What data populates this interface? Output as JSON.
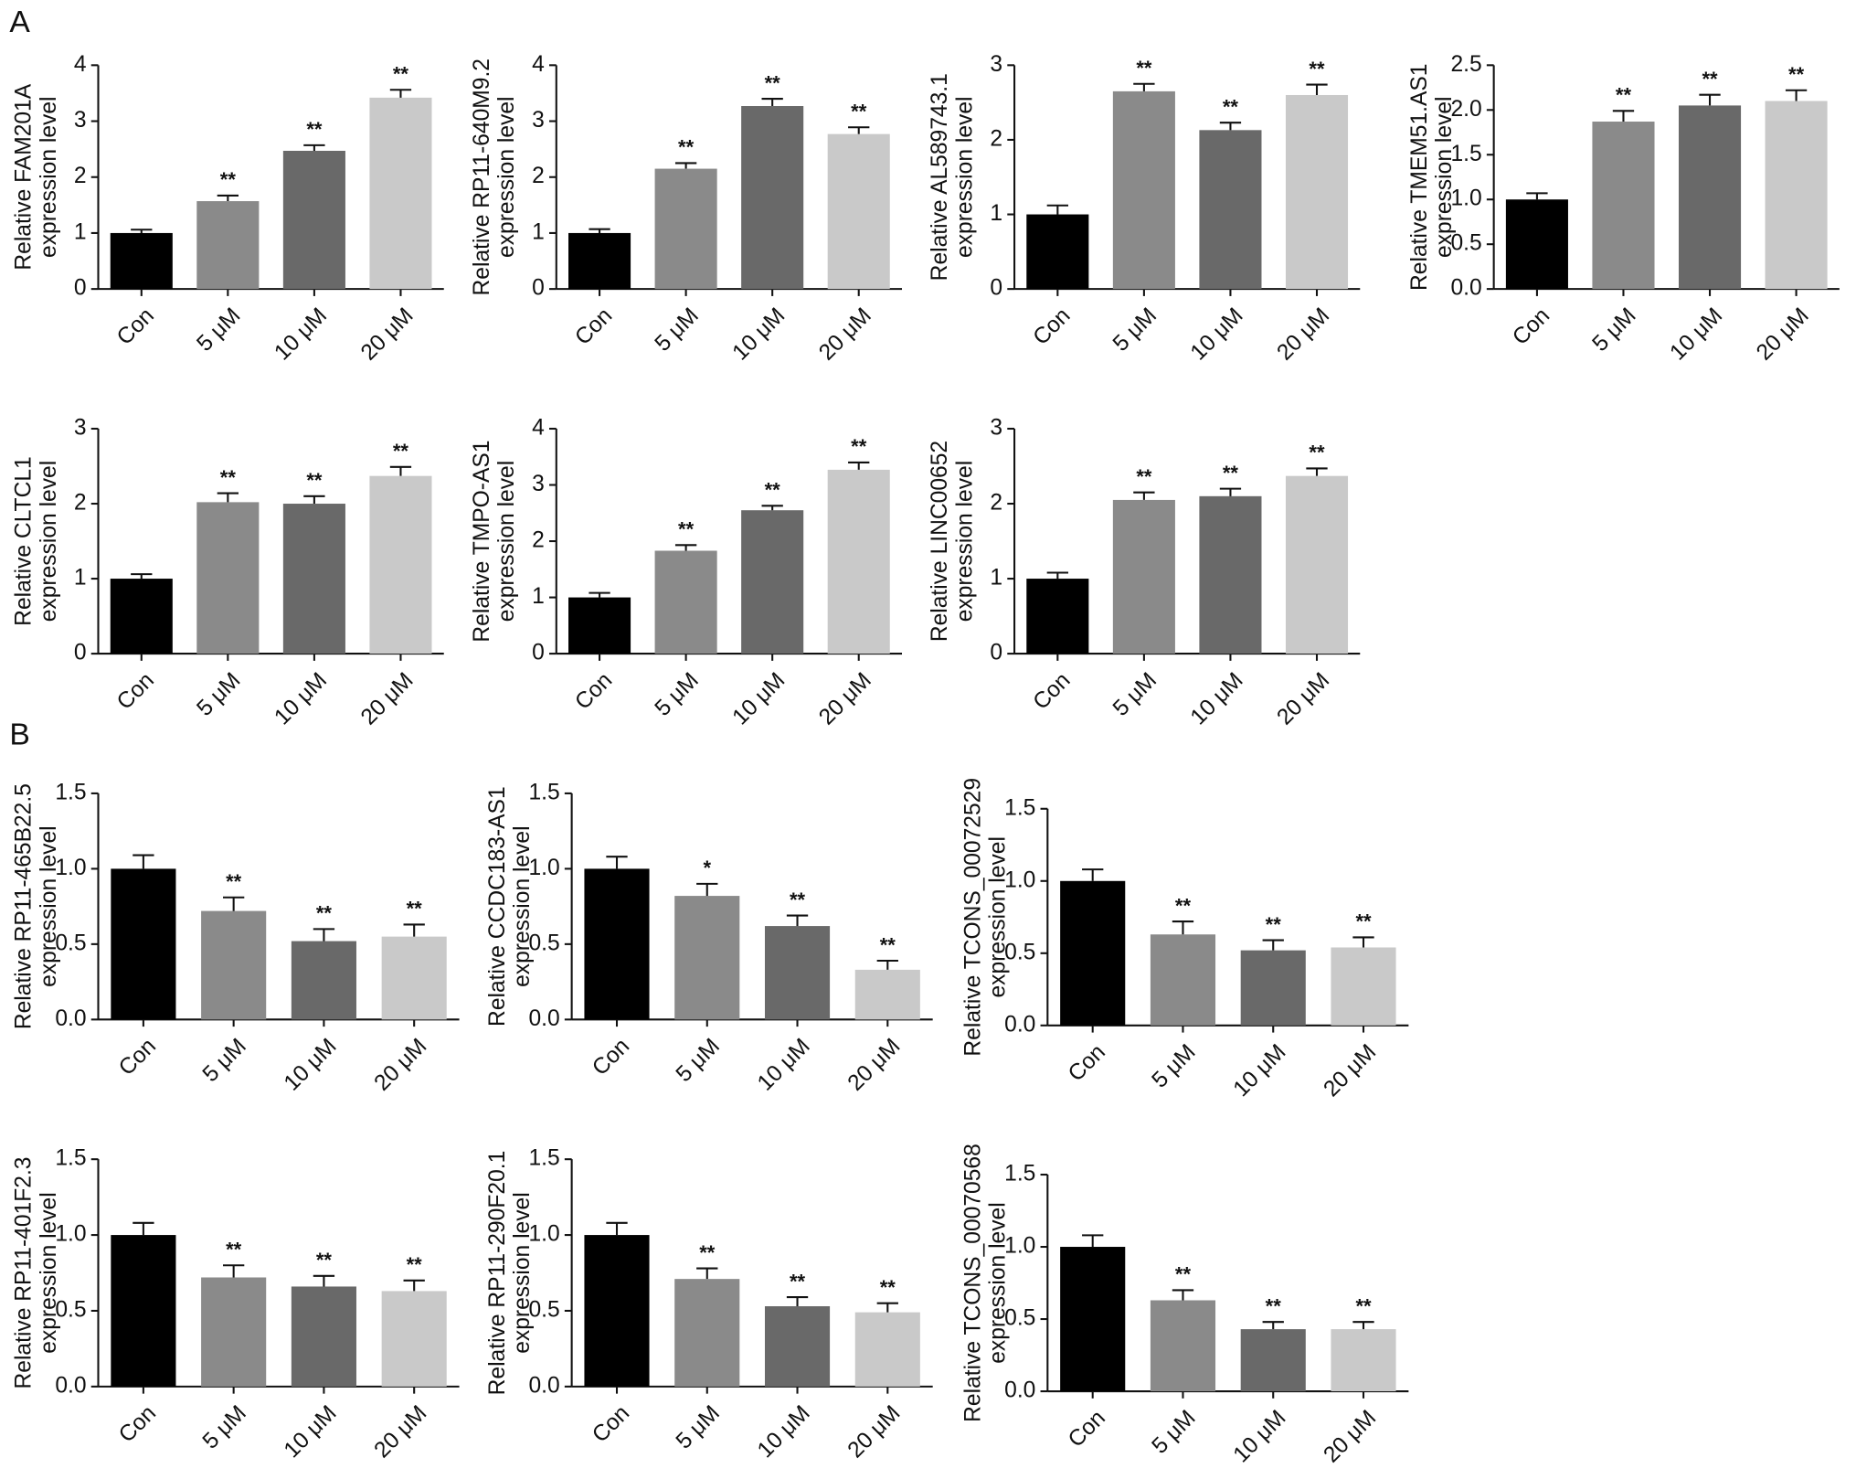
{
  "chart_data": [
    {
      "type": "bar",
      "panel_label": "A",
      "ylabel": [
        "Relative FAM201A",
        "expression level"
      ],
      "categories": [
        "Con",
        "5 μM",
        "10 μM",
        "20 μM"
      ],
      "colors": [
        "#000000",
        "#8a8a8a",
        "#696969",
        "#c9c9c9"
      ],
      "values": [
        1.0,
        1.57,
        2.47,
        3.42
      ],
      "errors": [
        0.06,
        0.1,
        0.1,
        0.14
      ],
      "annotations": [
        null,
        "**",
        "**",
        "**"
      ],
      "ylim": [
        0,
        4
      ],
      "yticks": [
        0,
        1,
        2,
        3,
        4
      ]
    },
    {
      "type": "bar",
      "ylabel": [
        "Relative RP11-640M9.2",
        "expression level"
      ],
      "categories": [
        "Con",
        "5 μM",
        "10 μM",
        "20 μM"
      ],
      "colors": [
        "#000000",
        "#8a8a8a",
        "#696969",
        "#c9c9c9"
      ],
      "values": [
        1.0,
        2.15,
        3.27,
        2.77
      ],
      "errors": [
        0.07,
        0.1,
        0.13,
        0.12
      ],
      "annotations": [
        null,
        "**",
        "**",
        "**"
      ],
      "ylim": [
        0,
        4
      ],
      "yticks": [
        0,
        1,
        2,
        3,
        4
      ]
    },
    {
      "type": "bar",
      "ylabel": [
        "Relative AL589743.1",
        "expression level"
      ],
      "categories": [
        "Con",
        "5 μM",
        "10 μM",
        "20 μM"
      ],
      "colors": [
        "#000000",
        "#8a8a8a",
        "#696969",
        "#c9c9c9"
      ],
      "values": [
        1.0,
        2.65,
        2.13,
        2.6
      ],
      "errors": [
        0.12,
        0.1,
        0.1,
        0.14
      ],
      "annotations": [
        null,
        "**",
        "**",
        "**"
      ],
      "ylim": [
        0,
        3
      ],
      "yticks": [
        0,
        1,
        2,
        3
      ]
    },
    {
      "type": "bar",
      "ylabel": [
        "Relative TMEM51.AS1",
        "expression level"
      ],
      "categories": [
        "Con",
        "5 μM",
        "10 μM",
        "20 μM"
      ],
      "colors": [
        "#000000",
        "#8a8a8a",
        "#696969",
        "#c9c9c9"
      ],
      "values": [
        1.0,
        1.87,
        2.05,
        2.1
      ],
      "errors": [
        0.07,
        0.12,
        0.12,
        0.12
      ],
      "annotations": [
        null,
        "**",
        "**",
        "**"
      ],
      "ylim": [
        0,
        2.5
      ],
      "yticks": [
        {
          "value": 0,
          "label": "0.0"
        },
        {
          "value": 0.5,
          "label": "0.5"
        },
        {
          "value": 1,
          "label": "1.0"
        },
        {
          "value": 1.5,
          "label": "1.5"
        },
        {
          "value": 2,
          "label": "2.0"
        },
        2.5
      ]
    },
    {
      "type": "bar",
      "ylabel": [
        "Relative CLTCL1",
        "expression level"
      ],
      "categories": [
        "Con",
        "5 μM",
        "10 μM",
        "20 μM"
      ],
      "colors": [
        "#000000",
        "#8a8a8a",
        "#696969",
        "#c9c9c9"
      ],
      "values": [
        1.0,
        2.02,
        2.0,
        2.37
      ],
      "errors": [
        0.06,
        0.12,
        0.1,
        0.12
      ],
      "annotations": [
        null,
        "**",
        "**",
        "**"
      ],
      "ylim": [
        0,
        3
      ],
      "yticks": [
        0,
        1,
        2,
        3
      ]
    },
    {
      "type": "bar",
      "ylabel": [
        "Relative TMPO-AS1",
        "expression level"
      ],
      "categories": [
        "Con",
        "5 μM",
        "10 μM",
        "20 μM"
      ],
      "colors": [
        "#000000",
        "#8a8a8a",
        "#696969",
        "#c9c9c9"
      ],
      "values": [
        1.0,
        1.83,
        2.55,
        3.27
      ],
      "errors": [
        0.08,
        0.1,
        0.08,
        0.13
      ],
      "annotations": [
        null,
        "**",
        "**",
        "**"
      ],
      "ylim": [
        0,
        4
      ],
      "yticks": [
        0,
        1,
        2,
        3,
        4
      ]
    },
    {
      "type": "bar",
      "ylabel": [
        "Relative LINC00652",
        "expression level"
      ],
      "categories": [
        "Con",
        "5 μM",
        "10 μM",
        "20 μM"
      ],
      "colors": [
        "#000000",
        "#8a8a8a",
        "#696969",
        "#c9c9c9"
      ],
      "values": [
        1.0,
        2.05,
        2.1,
        2.37
      ],
      "errors": [
        0.08,
        0.1,
        0.1,
        0.1
      ],
      "annotations": [
        null,
        "**",
        "**",
        "**"
      ],
      "ylim": [
        0,
        3
      ],
      "yticks": [
        0,
        1,
        2,
        3
      ]
    },
    {
      "type": "bar",
      "panel_label": "B",
      "ylabel": [
        "Relative RP11-465B22.5",
        "expression level"
      ],
      "categories": [
        "Con",
        "5 μM",
        "10 μM",
        "20 μM"
      ],
      "colors": [
        "#000000",
        "#8a8a8a",
        "#696969",
        "#c9c9c9"
      ],
      "values": [
        1.0,
        0.72,
        0.52,
        0.55
      ],
      "errors": [
        0.09,
        0.09,
        0.08,
        0.08
      ],
      "annotations": [
        null,
        "**",
        "**",
        "**"
      ],
      "ylim": [
        0,
        1.5
      ],
      "yticks": [
        {
          "value": 0,
          "label": "0.0"
        },
        0.5,
        {
          "value": 1,
          "label": "1.0"
        },
        1.5
      ]
    },
    {
      "type": "bar",
      "ylabel": [
        "Relative CCDC183-AS1",
        "expression level"
      ],
      "categories": [
        "Con",
        "5 μM",
        "10 μM",
        "20 μM"
      ],
      "colors": [
        "#000000",
        "#8a8a8a",
        "#696969",
        "#c9c9c9"
      ],
      "values": [
        1.0,
        0.82,
        0.62,
        0.33
      ],
      "errors": [
        0.08,
        0.08,
        0.07,
        0.06
      ],
      "annotations": [
        null,
        "*",
        "**",
        "**"
      ],
      "ylim": [
        0,
        1.5
      ],
      "yticks": [
        {
          "value": 0,
          "label": "0.0"
        },
        0.5,
        {
          "value": 1,
          "label": "1.0"
        },
        1.5
      ]
    },
    {
      "type": "bar",
      "ylabel": [
        "Relative TCONS_00072529",
        "expression level"
      ],
      "categories": [
        "Con",
        "5 μM",
        "10 μM",
        "20 μM"
      ],
      "colors": [
        "#000000",
        "#8a8a8a",
        "#696969",
        "#c9c9c9"
      ],
      "values": [
        1.0,
        0.63,
        0.52,
        0.54
      ],
      "errors": [
        0.08,
        0.09,
        0.07,
        0.07
      ],
      "annotations": [
        null,
        "**",
        "**",
        "**"
      ],
      "ylim": [
        0,
        1.5
      ],
      "yticks": [
        {
          "value": 0,
          "label": "0.0"
        },
        0.5,
        {
          "value": 1,
          "label": "1.0"
        },
        1.5
      ]
    },
    {
      "type": "bar",
      "ylabel": [
        "Relative RP11-401F2.3",
        "expression level"
      ],
      "categories": [
        "Con",
        "5 μM",
        "10 μM",
        "20 μM"
      ],
      "colors": [
        "#000000",
        "#8a8a8a",
        "#696969",
        "#c9c9c9"
      ],
      "values": [
        1.0,
        0.72,
        0.66,
        0.63
      ],
      "errors": [
        0.08,
        0.08,
        0.07,
        0.07
      ],
      "annotations": [
        null,
        "**",
        "**",
        "**"
      ],
      "ylim": [
        0,
        1.5
      ],
      "yticks": [
        {
          "value": 0,
          "label": "0.0"
        },
        0.5,
        {
          "value": 1,
          "label": "1.0"
        },
        1.5
      ]
    },
    {
      "type": "bar",
      "ylabel": [
        "Relative RP11-290F20.1",
        "expression level"
      ],
      "categories": [
        "Con",
        "5 μM",
        "10 μM",
        "20 μM"
      ],
      "colors": [
        "#000000",
        "#8a8a8a",
        "#696969",
        "#c9c9c9"
      ],
      "values": [
        1.0,
        0.71,
        0.53,
        0.49
      ],
      "errors": [
        0.08,
        0.07,
        0.06,
        0.06
      ],
      "annotations": [
        null,
        "**",
        "**",
        "**"
      ],
      "ylim": [
        0,
        1.5
      ],
      "yticks": [
        {
          "value": 0,
          "label": "0.0"
        },
        0.5,
        {
          "value": 1,
          "label": "1.0"
        },
        1.5
      ]
    },
    {
      "type": "bar",
      "ylabel": [
        "Relative TCONS_00070568",
        "expression level"
      ],
      "categories": [
        "Con",
        "5 μM",
        "10 μM",
        "20 μM"
      ],
      "colors": [
        "#000000",
        "#8a8a8a",
        "#696969",
        "#c9c9c9"
      ],
      "values": [
        1.0,
        0.63,
        0.43,
        0.43
      ],
      "errors": [
        0.08,
        0.07,
        0.05,
        0.05
      ],
      "annotations": [
        null,
        "**",
        "**",
        "**"
      ],
      "ylim": [
        0,
        1.5
      ],
      "yticks": [
        {
          "value": 0,
          "label": "0.0"
        },
        0.5,
        {
          "value": 1,
          "label": "1.0"
        },
        1.5
      ]
    }
  ]
}
